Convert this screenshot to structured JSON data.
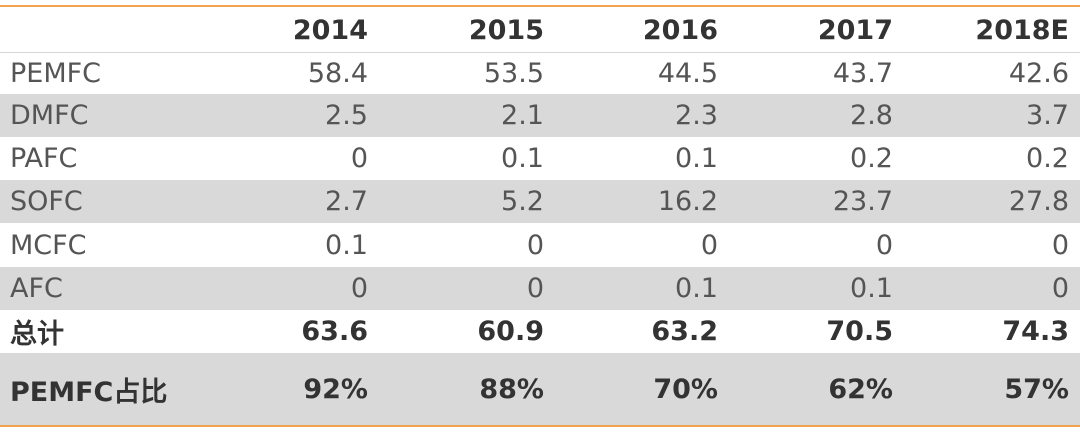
{
  "chart_data": {
    "type": "table",
    "columns": [
      "",
      "2014",
      "2015",
      "2016",
      "2017",
      "2018E"
    ],
    "rows": [
      {
        "label": "PEMFC",
        "values": [
          "58.4",
          "53.5",
          "44.5",
          "43.7",
          "42.6"
        ]
      },
      {
        "label": "DMFC",
        "values": [
          "2.5",
          "2.1",
          "2.3",
          "2.8",
          "3.7"
        ]
      },
      {
        "label": "PAFC",
        "values": [
          "0",
          "0.1",
          "0.1",
          "0.2",
          "0.2"
        ]
      },
      {
        "label": "SOFC",
        "values": [
          "2.7",
          "5.2",
          "16.2",
          "23.7",
          "27.8"
        ]
      },
      {
        "label": "MCFC",
        "values": [
          "0.1",
          "0",
          "0",
          "0",
          "0"
        ]
      },
      {
        "label": "AFC",
        "values": [
          "0",
          "0",
          "0.1",
          "0.1",
          "0"
        ]
      },
      {
        "label": "总计",
        "values": [
          "63.6",
          "60.9",
          "63.2",
          "70.5",
          "74.3"
        ]
      },
      {
        "label": "PEMFC占比",
        "values": [
          "92%",
          "88%",
          "70%",
          "62%",
          "57%"
        ]
      }
    ]
  },
  "colors": {
    "accent_rule": "#f0a250",
    "shade": "#d9d9d9"
  }
}
